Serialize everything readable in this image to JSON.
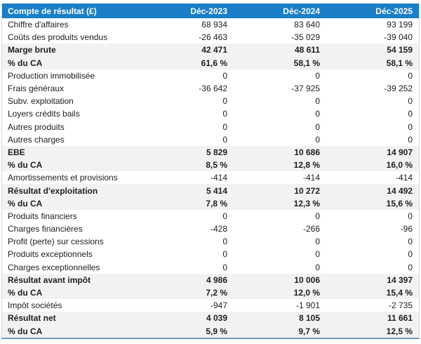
{
  "table": {
    "title": "Compte de résultat (£)",
    "columns": [
      "Déc-2023",
      "Déc-2024",
      "Déc-2025"
    ],
    "colors": {
      "header_bg": "#1a7ec8",
      "header_text": "#ffffff",
      "shaded_row_bg": "#f2f2f2",
      "body_text": "#202020",
      "side_border": "#d9d9d9",
      "bottom_border": "#6a9cc3"
    },
    "rows": [
      {
        "label": "Chiffre d'affaires",
        "values": [
          "68 934",
          "83 640",
          "93 199"
        ],
        "emphasis": false
      },
      {
        "label": "Coûts des produits vendus",
        "values": [
          "-26 463",
          "-35 029",
          "-39 040"
        ],
        "emphasis": false
      },
      {
        "label": "Marge brute",
        "values": [
          "42 471",
          "48 611",
          "54 159"
        ],
        "emphasis": true
      },
      {
        "label": "% du CA",
        "values": [
          "61,6 %",
          "58,1 %",
          "58,1 %"
        ],
        "emphasis": true
      },
      {
        "label": "Production immobilisée",
        "values": [
          "0",
          "0",
          "0"
        ],
        "emphasis": false
      },
      {
        "label": "Frais généraux",
        "values": [
          "-36 642",
          "-37 925",
          "-39 252"
        ],
        "emphasis": false
      },
      {
        "label": "Subv. exploitation",
        "values": [
          "0",
          "0",
          "0"
        ],
        "emphasis": false
      },
      {
        "label": "Loyers crédits bails",
        "values": [
          "0",
          "0",
          "0"
        ],
        "emphasis": false
      },
      {
        "label": "Autres produits",
        "values": [
          "0",
          "0",
          "0"
        ],
        "emphasis": false
      },
      {
        "label": "Autres charges",
        "values": [
          "0",
          "0",
          "0"
        ],
        "emphasis": false
      },
      {
        "label": "EBE",
        "values": [
          "5 829",
          "10 686",
          "14 907"
        ],
        "emphasis": true
      },
      {
        "label": "% du CA",
        "values": [
          "8,5 %",
          "12,8 %",
          "16,0 %"
        ],
        "emphasis": true
      },
      {
        "label": "Amortissements et provisions",
        "values": [
          "-414",
          "-414",
          "-414"
        ],
        "emphasis": false
      },
      {
        "label": "Résultat d'exploitation",
        "values": [
          "5 414",
          "10 272",
          "14 492"
        ],
        "emphasis": true
      },
      {
        "label": "% du CA",
        "values": [
          "7,8 %",
          "12,3 %",
          "15,6 %"
        ],
        "emphasis": true
      },
      {
        "label": "Produits financiers",
        "values": [
          "0",
          "0",
          "0"
        ],
        "emphasis": false
      },
      {
        "label": "Charges financières",
        "values": [
          "-428",
          "-266",
          "-96"
        ],
        "emphasis": false
      },
      {
        "label": "Profit (perte) sur cessions",
        "values": [
          "0",
          "0",
          "0"
        ],
        "emphasis": false
      },
      {
        "label": "Produits exceptionnels",
        "values": [
          "0",
          "0",
          "0"
        ],
        "emphasis": false
      },
      {
        "label": "Charges exceptionnelles",
        "values": [
          "0",
          "0",
          "0"
        ],
        "emphasis": false
      },
      {
        "label": "Résultat avant impôt",
        "values": [
          "4 986",
          "10 006",
          "14 397"
        ],
        "emphasis": true
      },
      {
        "label": "% du CA",
        "values": [
          "7,2 %",
          "12,0 %",
          "15,4 %"
        ],
        "emphasis": true
      },
      {
        "label": "Impôt sociétés",
        "values": [
          "-947",
          "-1 901",
          "-2 735"
        ],
        "emphasis": false
      },
      {
        "label": "Résultat net",
        "values": [
          "4 039",
          "8 105",
          "11 661"
        ],
        "emphasis": true
      },
      {
        "label": "% du CA",
        "values": [
          "5,9 %",
          "9,7 %",
          "12,5 %"
        ],
        "emphasis": true
      }
    ]
  },
  "chart_data": {
    "type": "table",
    "title": "Compte de résultat (£)",
    "columns": [
      "Déc-2023",
      "Déc-2024",
      "Déc-2025"
    ],
    "rows": [
      {
        "label": "Chiffre d'affaires",
        "values": [
          68934,
          83640,
          93199
        ]
      },
      {
        "label": "Coûts des produits vendus",
        "values": [
          -26463,
          -35029,
          -39040
        ]
      },
      {
        "label": "Marge brute",
        "values": [
          42471,
          48611,
          54159
        ]
      },
      {
        "label": "% du CA (marge brute)",
        "values": [
          "61,6 %",
          "58,1 %",
          "58,1 %"
        ]
      },
      {
        "label": "Production immobilisée",
        "values": [
          0,
          0,
          0
        ]
      },
      {
        "label": "Frais généraux",
        "values": [
          -36642,
          -37925,
          -39252
        ]
      },
      {
        "label": "Subv. exploitation",
        "values": [
          0,
          0,
          0
        ]
      },
      {
        "label": "Loyers crédits bails",
        "values": [
          0,
          0,
          0
        ]
      },
      {
        "label": "Autres produits",
        "values": [
          0,
          0,
          0
        ]
      },
      {
        "label": "Autres charges",
        "values": [
          0,
          0,
          0
        ]
      },
      {
        "label": "EBE",
        "values": [
          5829,
          10686,
          14907
        ]
      },
      {
        "label": "% du CA (EBE)",
        "values": [
          "8,5 %",
          "12,8 %",
          "16,0 %"
        ]
      },
      {
        "label": "Amortissements et provisions",
        "values": [
          -414,
          -414,
          -414
        ]
      },
      {
        "label": "Résultat d'exploitation",
        "values": [
          5414,
          10272,
          14492
        ]
      },
      {
        "label": "% du CA (résultat d'exploitation)",
        "values": [
          "7,8 %",
          "12,3 %",
          "15,6 %"
        ]
      },
      {
        "label": "Produits financiers",
        "values": [
          0,
          0,
          0
        ]
      },
      {
        "label": "Charges financières",
        "values": [
          -428,
          -266,
          -96
        ]
      },
      {
        "label": "Profit (perte) sur cessions",
        "values": [
          0,
          0,
          0
        ]
      },
      {
        "label": "Produits exceptionnels",
        "values": [
          0,
          0,
          0
        ]
      },
      {
        "label": "Charges exceptionnelles",
        "values": [
          0,
          0,
          0
        ]
      },
      {
        "label": "Résultat avant impôt",
        "values": [
          4986,
          10006,
          14397
        ]
      },
      {
        "label": "% du CA (résultat avant impôt)",
        "values": [
          "7,2 %",
          "12,0 %",
          "15,4 %"
        ]
      },
      {
        "label": "Impôt sociétés",
        "values": [
          -947,
          -1901,
          -2735
        ]
      },
      {
        "label": "Résultat net",
        "values": [
          4039,
          8105,
          11661
        ]
      },
      {
        "label": "% du CA (résultat net)",
        "values": [
          "5,9 %",
          "9,7 %",
          "12,5 %"
        ]
      }
    ]
  }
}
